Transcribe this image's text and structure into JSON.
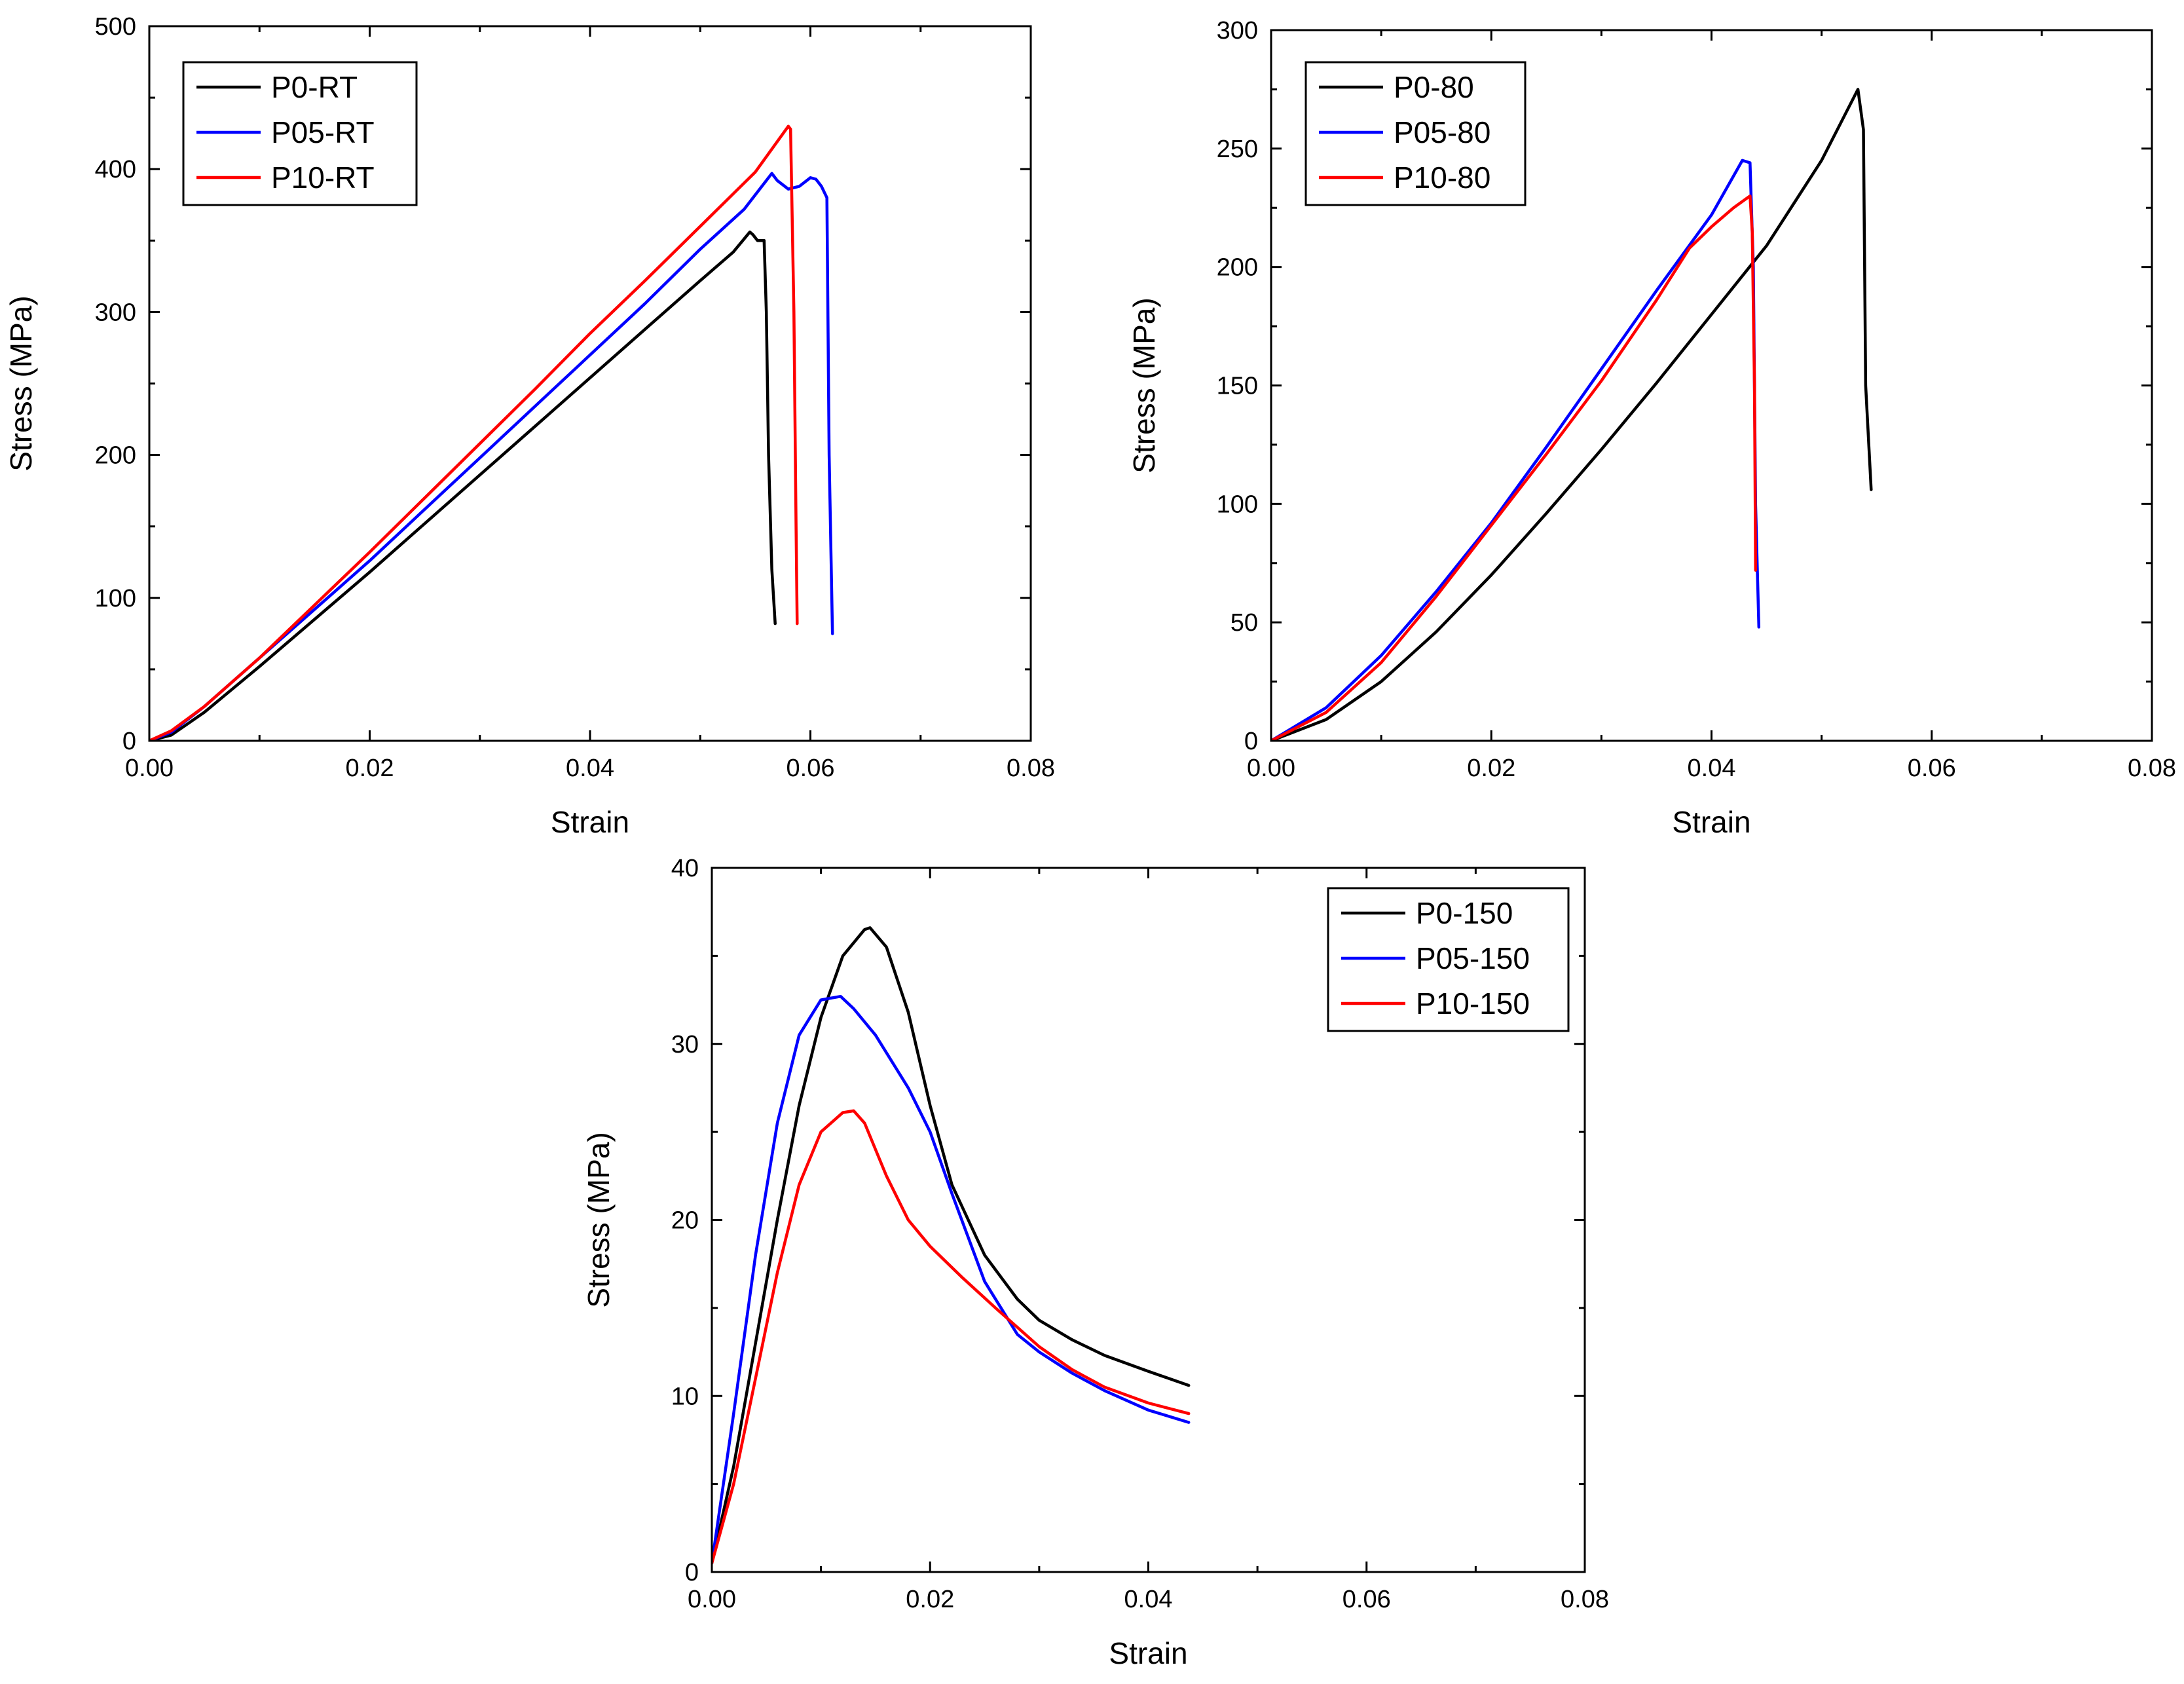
{
  "figure": {
    "description_free": true
  },
  "chart_data": [
    {
      "id": "rt",
      "type": "line",
      "title": "",
      "xlabel": "Strain",
      "ylabel": "Stress (MPa)",
      "xlim": [
        0,
        0.08
      ],
      "ylim": [
        0,
        500
      ],
      "xticks": [
        0.0,
        0.02,
        0.04,
        0.06,
        0.08
      ],
      "xtick_labels": [
        "0.00",
        "0.02",
        "0.04",
        "0.06",
        "0.08"
      ],
      "yticks": [
        0,
        100,
        200,
        300,
        400,
        500
      ],
      "ytick_labels": [
        "0",
        "100",
        "200",
        "300",
        "400",
        "500"
      ],
      "grid": false,
      "legend_position": "top-left",
      "series": [
        {
          "name": "P0-RT",
          "color": "#000000",
          "x": [
            0,
            0.002,
            0.005,
            0.01,
            0.015,
            0.02,
            0.025,
            0.03,
            0.035,
            0.04,
            0.045,
            0.05,
            0.053,
            0.0545,
            0.0548,
            0.0552,
            0.0558,
            0.056,
            0.0562,
            0.0565,
            0.0568
          ],
          "y": [
            0,
            4,
            20,
            52,
            85,
            118,
            152,
            186,
            220,
            254,
            288,
            322,
            342,
            356,
            354,
            350,
            350,
            300,
            200,
            120,
            82
          ]
        },
        {
          "name": "P05-RT",
          "color": "#0000ff",
          "x": [
            0,
            0.002,
            0.005,
            0.01,
            0.015,
            0.02,
            0.025,
            0.03,
            0.035,
            0.04,
            0.045,
            0.05,
            0.054,
            0.0565,
            0.057,
            0.058,
            0.059,
            0.06,
            0.0605,
            0.061,
            0.0615,
            0.0617,
            0.062
          ],
          "y": [
            0,
            6,
            24,
            58,
            92,
            126,
            162,
            198,
            234,
            270,
            306,
            344,
            372,
            397,
            392,
            386,
            388,
            394,
            393,
            388,
            380,
            200,
            75
          ]
        },
        {
          "name": "P10-RT",
          "color": "#ff0000",
          "x": [
            0,
            0.002,
            0.005,
            0.01,
            0.015,
            0.02,
            0.025,
            0.03,
            0.035,
            0.04,
            0.045,
            0.05,
            0.055,
            0.058,
            0.0582,
            0.0585,
            0.0587,
            0.0588
          ],
          "y": [
            0,
            7,
            24,
            58,
            95,
            132,
            170,
            208,
            246,
            285,
            322,
            360,
            398,
            430,
            428,
            300,
            150,
            82
          ]
        }
      ]
    },
    {
      "id": "t80",
      "type": "line",
      "title": "",
      "xlabel": "Strain",
      "ylabel": "Stress (MPa)",
      "xlim": [
        0,
        0.08
      ],
      "ylim": [
        0,
        300
      ],
      "xticks": [
        0.0,
        0.02,
        0.04,
        0.06,
        0.08
      ],
      "xtick_labels": [
        "0.00",
        "0.02",
        "0.04",
        "0.06",
        "0.08"
      ],
      "yticks": [
        0,
        50,
        100,
        150,
        200,
        250,
        300
      ],
      "ytick_labels": [
        "0",
        "50",
        "100",
        "150",
        "200",
        "250",
        "300"
      ],
      "grid": false,
      "legend_position": "top-left",
      "series": [
        {
          "name": "P0-80",
          "color": "#000000",
          "x": [
            0,
            0.005,
            0.01,
            0.015,
            0.02,
            0.025,
            0.03,
            0.035,
            0.04,
            0.045,
            0.05,
            0.0533,
            0.0538,
            0.054,
            0.0545
          ],
          "y": [
            0,
            9,
            25,
            46,
            70,
            96,
            123,
            151,
            180,
            209,
            245,
            275,
            258,
            150,
            106
          ]
        },
        {
          "name": "P05-80",
          "color": "#0000ff",
          "x": [
            0,
            0.005,
            0.01,
            0.015,
            0.02,
            0.025,
            0.03,
            0.035,
            0.04,
            0.0428,
            0.0435,
            0.0438,
            0.044,
            0.0443
          ],
          "y": [
            0,
            14,
            36,
            63,
            92,
            124,
            157,
            190,
            222,
            245,
            244,
            200,
            100,
            48
          ]
        },
        {
          "name": "P10-80",
          "color": "#ff0000",
          "x": [
            0,
            0.005,
            0.01,
            0.015,
            0.02,
            0.025,
            0.03,
            0.035,
            0.038,
            0.04,
            0.042,
            0.0435,
            0.0437,
            0.0439,
            0.044
          ],
          "y": [
            0,
            12,
            33,
            61,
            91,
            121,
            152,
            186,
            208,
            217,
            225,
            230,
            215,
            150,
            72
          ]
        }
      ]
    },
    {
      "id": "t150",
      "type": "line",
      "title": "",
      "xlabel": "Strain",
      "ylabel": "Stress (MPa)",
      "xlim": [
        0,
        0.08
      ],
      "ylim": [
        0,
        40
      ],
      "xticks": [
        0.0,
        0.02,
        0.04,
        0.06,
        0.08
      ],
      "xtick_labels": [
        "0.00",
        "0.02",
        "0.04",
        "0.06",
        "0.08"
      ],
      "yticks": [
        0,
        10,
        20,
        30,
        40
      ],
      "ytick_labels": [
        "0",
        "10",
        "20",
        "30",
        "40"
      ],
      "grid": false,
      "legend_position": "top-right",
      "series": [
        {
          "name": "P0-150",
          "color": "#000000",
          "x": [
            0,
            0.002,
            0.004,
            0.006,
            0.008,
            0.01,
            0.012,
            0.014,
            0.0145,
            0.016,
            0.018,
            0.02,
            0.022,
            0.025,
            0.028,
            0.03,
            0.033,
            0.036,
            0.04,
            0.0437
          ],
          "y": [
            0.5,
            6,
            13,
            20,
            26.5,
            31.5,
            35,
            36.5,
            36.6,
            35.5,
            31.8,
            26.5,
            22,
            18,
            15.5,
            14.3,
            13.2,
            12.3,
            11.4,
            10.6
          ]
        },
        {
          "name": "P05-150",
          "color": "#0000ff",
          "x": [
            0,
            0.002,
            0.004,
            0.006,
            0.008,
            0.01,
            0.0118,
            0.013,
            0.015,
            0.018,
            0.02,
            0.022,
            0.025,
            0.028,
            0.03,
            0.033,
            0.036,
            0.04,
            0.0437
          ],
          "y": [
            0.5,
            9,
            18,
            25.5,
            30.5,
            32.5,
            32.7,
            32,
            30.5,
            27.5,
            25,
            21.5,
            16.5,
            13.5,
            12.5,
            11.3,
            10.3,
            9.2,
            8.5
          ]
        },
        {
          "name": "P10-150",
          "color": "#ff0000",
          "x": [
            0,
            0.002,
            0.004,
            0.006,
            0.008,
            0.01,
            0.012,
            0.013,
            0.014,
            0.016,
            0.018,
            0.02,
            0.023,
            0.026,
            0.03,
            0.033,
            0.036,
            0.04,
            0.0437
          ],
          "y": [
            0.5,
            5,
            11,
            17,
            22,
            25,
            26.1,
            26.2,
            25.5,
            22.5,
            20,
            18.5,
            16.7,
            15,
            12.8,
            11.5,
            10.5,
            9.6,
            9
          ]
        }
      ]
    }
  ]
}
